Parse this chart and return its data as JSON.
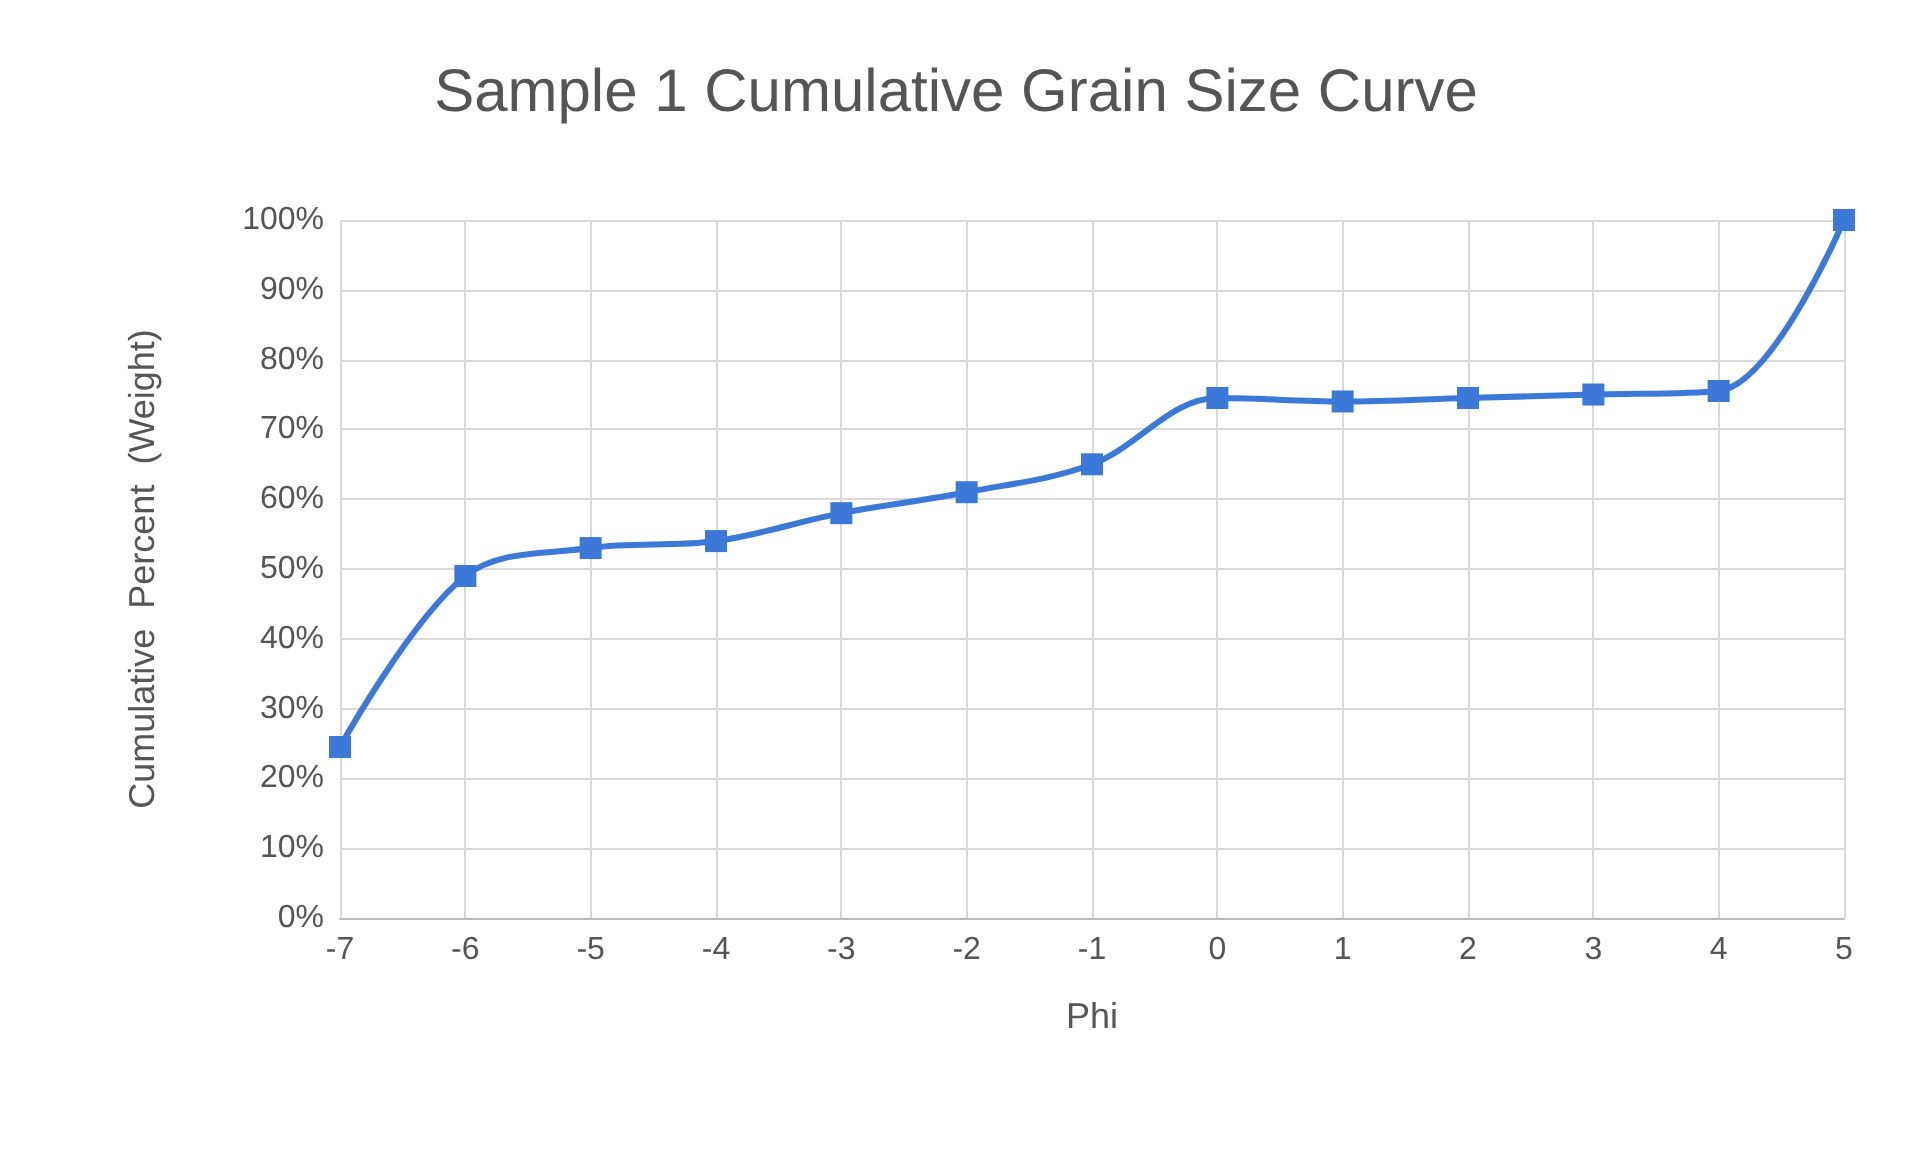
{
  "chart_data": {
    "type": "line",
    "title": "Sample 1 Cumulative Grain Size Curve",
    "xlabel": "Phi",
    "ylabel": "Cumulative  Percent  (Weight)",
    "x": [
      -7,
      -6,
      -5,
      -4,
      -3,
      -2,
      -1,
      0,
      1,
      2,
      3,
      4,
      5
    ],
    "series": [
      {
        "color": "#3c78d8",
        "values": [
          24.5,
          49,
          53,
          54,
          58,
          61,
          65,
          74.5,
          74,
          74.5,
          75,
          75.5,
          100
        ]
      }
    ],
    "xlim": [
      -7,
      5
    ],
    "xticks": [
      -7,
      -6,
      -5,
      -4,
      -3,
      -2,
      -1,
      0,
      1,
      2,
      3,
      4,
      5
    ],
    "ylim": [
      0,
      100
    ],
    "yticks": [
      {
        "value": 0,
        "label": "0%"
      },
      {
        "value": 10,
        "label": "10%"
      },
      {
        "value": 20,
        "label": "20%"
      },
      {
        "value": 30,
        "label": "30%"
      },
      {
        "value": 40,
        "label": "40%"
      },
      {
        "value": 50,
        "label": "50%"
      },
      {
        "value": 60,
        "label": "60%"
      },
      {
        "value": 70,
        "label": "70%"
      },
      {
        "value": 80,
        "label": "80%"
      },
      {
        "value": 90,
        "label": "90%"
      },
      {
        "value": 100,
        "label": "100%"
      }
    ],
    "grid": true,
    "marker": "square",
    "line_style": "solid"
  }
}
